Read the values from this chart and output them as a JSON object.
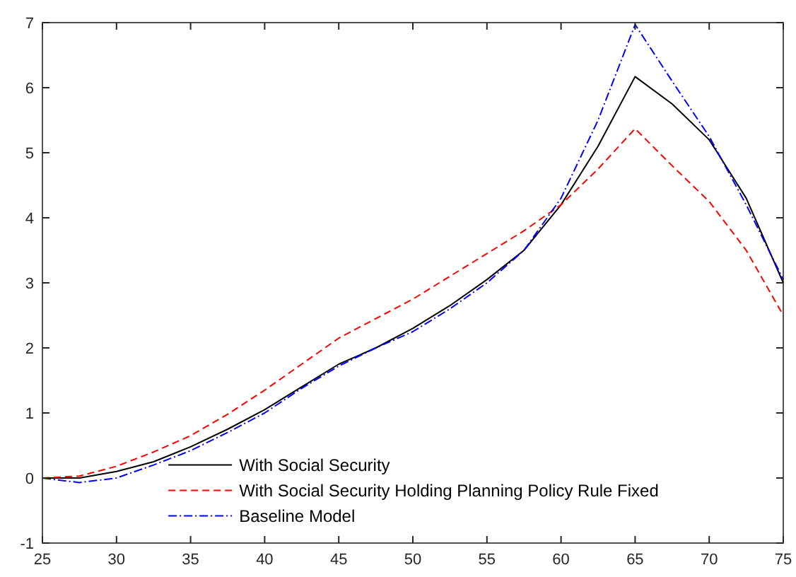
{
  "chart_data": {
    "type": "line",
    "x": [
      25,
      27.5,
      30,
      32.5,
      35,
      37.5,
      40,
      42.5,
      45,
      47.5,
      50,
      52.5,
      55,
      57.5,
      60,
      62.5,
      65,
      67.5,
      70,
      72.5,
      75
    ],
    "xlim": [
      25,
      75
    ],
    "xticks": [
      25,
      30,
      35,
      40,
      45,
      50,
      55,
      60,
      65,
      70,
      75
    ],
    "ylim": [
      -1,
      7
    ],
    "yticks": [
      -1,
      0,
      1,
      2,
      3,
      4,
      5,
      6,
      7
    ],
    "grid": false,
    "legend": "bottom",
    "series": [
      {
        "name": "With Social Security",
        "color": "#000000",
        "line_style": "solid",
        "values": [
          0,
          0.0,
          0.1,
          0.25,
          0.48,
          0.75,
          1.05,
          1.4,
          1.75,
          2.0,
          2.3,
          2.65,
          3.05,
          3.5,
          4.2,
          5.1,
          6.17,
          5.75,
          5.2,
          4.3,
          3.0
        ]
      },
      {
        "name": "With Social Security Holding Planning Policy Rule Fixed",
        "color": "#ff0000",
        "line_style": "dashed",
        "values": [
          0,
          0.03,
          0.18,
          0.4,
          0.65,
          0.98,
          1.35,
          1.75,
          2.15,
          2.45,
          2.75,
          3.1,
          3.45,
          3.8,
          4.2,
          4.75,
          5.37,
          4.8,
          4.25,
          3.5,
          2.5
        ]
      },
      {
        "name": "Baseline Model",
        "color": "#0000ff",
        "line_style": "dashdot",
        "values": [
          0,
          -0.07,
          0.0,
          0.2,
          0.42,
          0.7,
          1.0,
          1.38,
          1.72,
          2.0,
          2.25,
          2.6,
          3.0,
          3.5,
          4.3,
          5.5,
          6.97,
          6.1,
          5.25,
          4.2,
          3.05
        ]
      }
    ]
  }
}
